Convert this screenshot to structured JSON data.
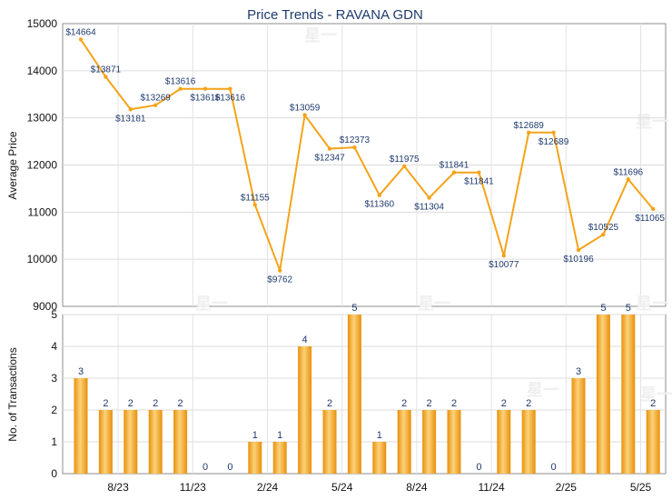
{
  "chart_data": [
    {
      "type": "line",
      "title": "Price Trends - RAVANA GDN",
      "ylabel": "Average Price",
      "ylim": [
        9000,
        15000
      ],
      "yticks": [
        "9000",
        "10000",
        "11000",
        "12000",
        "13000",
        "14000",
        "15000"
      ],
      "line_color": "#f5a31a",
      "points": [
        {
          "i": 0,
          "value": 14664,
          "label": "$14664"
        },
        {
          "i": 1,
          "value": 13871,
          "label": "$13871"
        },
        {
          "i": 2,
          "value": 13181,
          "label": "$13181"
        },
        {
          "i": 3,
          "value": 13269,
          "label": "$13269"
        },
        {
          "i": 4,
          "value": 13616,
          "label": "$13616"
        },
        {
          "i": 5,
          "value": 13616,
          "label": "$13616"
        },
        {
          "i": 6,
          "value": 13616,
          "label": "$13616"
        },
        {
          "i": 7,
          "value": 11155,
          "label": "$11155"
        },
        {
          "i": 8,
          "value": 9762,
          "label": "$9762"
        },
        {
          "i": 9,
          "value": 13059,
          "label": "$13059"
        },
        {
          "i": 10,
          "value": 12347,
          "label": "$12347"
        },
        {
          "i": 11,
          "value": 12373,
          "label": "$12373"
        },
        {
          "i": 12,
          "value": 11360,
          "label": "$11360"
        },
        {
          "i": 13,
          "value": 11975,
          "label": "$11975"
        },
        {
          "i": 14,
          "value": 11304,
          "label": "$11304"
        },
        {
          "i": 15,
          "value": 11841,
          "label": "$11841"
        },
        {
          "i": 16,
          "value": 11841,
          "label": "$11841"
        },
        {
          "i": 17,
          "value": 10077,
          "label": "$10077"
        },
        {
          "i": 18,
          "value": 12689,
          "label": "$12689"
        },
        {
          "i": 19,
          "value": 12689,
          "label": "$12689"
        },
        {
          "i": 20,
          "value": 10196,
          "label": "$10196"
        },
        {
          "i": 21,
          "value": 10525,
          "label": "$10525"
        },
        {
          "i": 22,
          "value": 11696,
          "label": "$11696"
        },
        {
          "i": 23,
          "value": 11065,
          "label": "$11065"
        }
      ]
    },
    {
      "type": "bar",
      "ylabel": "No. of Transactions",
      "ylim": [
        0,
        5
      ],
      "yticks": [
        "0",
        "1",
        "2",
        "3",
        "4",
        "5"
      ],
      "bar_color": "#f5a31a",
      "values": [
        3,
        2,
        2,
        2,
        2,
        0,
        0,
        1,
        1,
        4,
        2,
        5,
        1,
        2,
        2,
        2,
        0,
        2,
        2,
        0,
        3,
        5,
        5,
        2
      ],
      "value_labels": [
        "3",
        "2",
        "2",
        "2",
        "2",
        "0",
        "0",
        "1",
        "1",
        "4",
        "2",
        "5",
        "1",
        "2",
        "2",
        "2",
        "0",
        "2",
        "2",
        "0",
        "3",
        "5",
        "5",
        "2"
      ],
      "x_tick_labels": [
        {
          "after_index": 1.5,
          "label": "8/23"
        },
        {
          "after_index": 4.5,
          "label": "11/23"
        },
        {
          "after_index": 7.5,
          "label": "2/24"
        },
        {
          "after_index": 10.5,
          "label": "5/24"
        },
        {
          "after_index": 13.5,
          "label": "8/24"
        },
        {
          "after_index": 16.5,
          "label": "11/24"
        },
        {
          "after_index": 19.5,
          "label": "2/25"
        },
        {
          "after_index": 22.5,
          "label": "5/25"
        }
      ]
    }
  ],
  "watermark": "星一"
}
